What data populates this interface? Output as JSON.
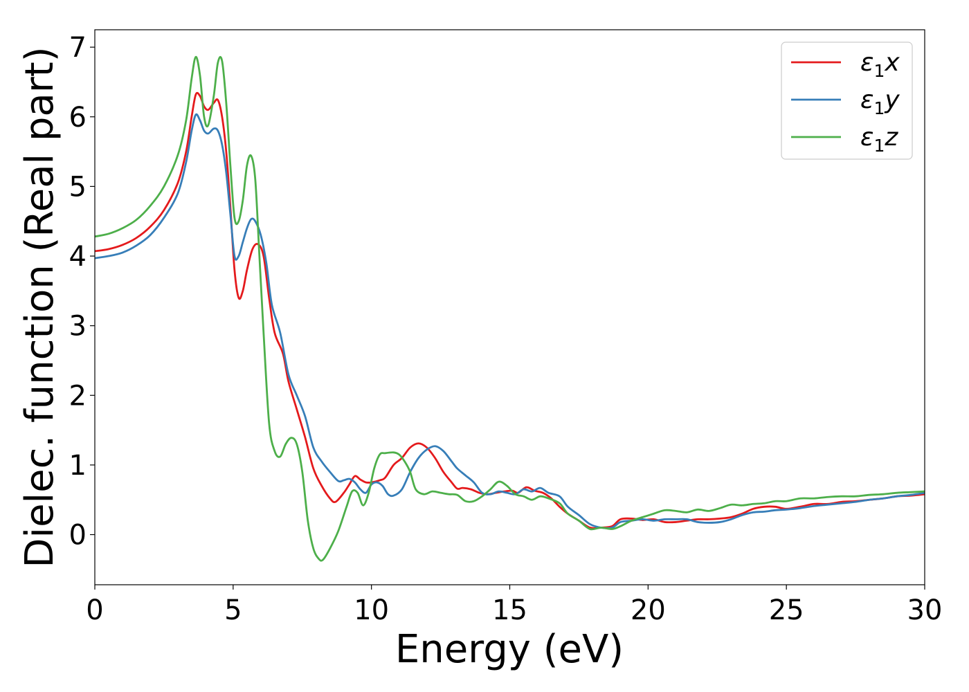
{
  "chart_data": {
    "type": "line",
    "xlabel": "Energy (eV)",
    "ylabel": "Dielec. function (Real part)",
    "xlim": [
      0,
      30
    ],
    "ylim": [
      -0.72,
      7.25
    ],
    "xticks": [
      0,
      5,
      10,
      15,
      20,
      25,
      30
    ],
    "yticks": [
      0,
      1,
      2,
      3,
      4,
      5,
      6,
      7
    ],
    "grid": false,
    "legend_position": "top-right",
    "series": [
      {
        "name": "ε₁x",
        "legend": {
          "base": "ε",
          "sub": "1",
          "axis": "x"
        },
        "color": "#e41a1c",
        "points": [
          [
            0,
            4.07
          ],
          [
            0.5,
            4.1
          ],
          [
            1,
            4.16
          ],
          [
            1.5,
            4.26
          ],
          [
            2,
            4.42
          ],
          [
            2.5,
            4.66
          ],
          [
            3,
            5.05
          ],
          [
            3.3,
            5.5
          ],
          [
            3.5,
            6.0
          ],
          [
            3.65,
            6.32
          ],
          [
            3.8,
            6.3
          ],
          [
            3.95,
            6.15
          ],
          [
            4.1,
            6.1
          ],
          [
            4.3,
            6.2
          ],
          [
            4.45,
            6.24
          ],
          [
            4.6,
            6.0
          ],
          [
            4.75,
            5.5
          ],
          [
            4.9,
            4.7
          ],
          [
            5.05,
            3.8
          ],
          [
            5.2,
            3.4
          ],
          [
            5.35,
            3.5
          ],
          [
            5.5,
            3.8
          ],
          [
            5.7,
            4.1
          ],
          [
            5.9,
            4.17
          ],
          [
            6.1,
            4.0
          ],
          [
            6.3,
            3.4
          ],
          [
            6.5,
            2.9
          ],
          [
            6.8,
            2.6
          ],
          [
            7.0,
            2.2
          ],
          [
            7.3,
            1.8
          ],
          [
            7.6,
            1.4
          ],
          [
            7.9,
            0.95
          ],
          [
            8.2,
            0.7
          ],
          [
            8.5,
            0.52
          ],
          [
            8.7,
            0.47
          ],
          [
            9.0,
            0.6
          ],
          [
            9.2,
            0.72
          ],
          [
            9.4,
            0.84
          ],
          [
            9.6,
            0.79
          ],
          [
            9.8,
            0.75
          ],
          [
            10.0,
            0.75
          ],
          [
            10.3,
            0.78
          ],
          [
            10.5,
            0.82
          ],
          [
            10.8,
            1.0
          ],
          [
            11.1,
            1.1
          ],
          [
            11.4,
            1.25
          ],
          [
            11.7,
            1.31
          ],
          [
            12.0,
            1.25
          ],
          [
            12.3,
            1.1
          ],
          [
            12.6,
            0.9
          ],
          [
            12.9,
            0.75
          ],
          [
            13.1,
            0.66
          ],
          [
            13.3,
            0.67
          ],
          [
            13.6,
            0.65
          ],
          [
            13.9,
            0.6
          ],
          [
            14.2,
            0.58
          ],
          [
            14.5,
            0.6
          ],
          [
            14.8,
            0.62
          ],
          [
            15.1,
            0.63
          ],
          [
            15.3,
            0.6
          ],
          [
            15.6,
            0.68
          ],
          [
            15.9,
            0.63
          ],
          [
            16.2,
            0.6
          ],
          [
            16.5,
            0.52
          ],
          [
            16.8,
            0.4
          ],
          [
            17.1,
            0.3
          ],
          [
            17.5,
            0.2
          ],
          [
            17.9,
            0.1
          ],
          [
            18.3,
            0.1
          ],
          [
            18.7,
            0.12
          ],
          [
            19.0,
            0.22
          ],
          [
            19.4,
            0.23
          ],
          [
            19.8,
            0.21
          ],
          [
            20.2,
            0.22
          ],
          [
            20.6,
            0.18
          ],
          [
            21.0,
            0.18
          ],
          [
            21.4,
            0.2
          ],
          [
            21.8,
            0.22
          ],
          [
            22.2,
            0.22
          ],
          [
            22.6,
            0.23
          ],
          [
            23.0,
            0.25
          ],
          [
            23.4,
            0.3
          ],
          [
            23.8,
            0.37
          ],
          [
            24.2,
            0.4
          ],
          [
            24.6,
            0.4
          ],
          [
            25.0,
            0.37
          ],
          [
            25.5,
            0.4
          ],
          [
            26.0,
            0.44
          ],
          [
            26.5,
            0.44
          ],
          [
            27.0,
            0.47
          ],
          [
            27.5,
            0.48
          ],
          [
            28.0,
            0.5
          ],
          [
            28.5,
            0.52
          ],
          [
            29.0,
            0.55
          ],
          [
            29.5,
            0.56
          ],
          [
            30,
            0.58
          ]
        ]
      },
      {
        "name": "ε₁y",
        "legend": {
          "base": "ε",
          "sub": "1",
          "axis": "y"
        },
        "color": "#377eb8",
        "points": [
          [
            0,
            3.97
          ],
          [
            0.5,
            4.0
          ],
          [
            1,
            4.05
          ],
          [
            1.5,
            4.15
          ],
          [
            2,
            4.3
          ],
          [
            2.5,
            4.55
          ],
          [
            3,
            4.9
          ],
          [
            3.3,
            5.35
          ],
          [
            3.5,
            5.8
          ],
          [
            3.65,
            6.03
          ],
          [
            3.8,
            5.95
          ],
          [
            3.95,
            5.8
          ],
          [
            4.1,
            5.76
          ],
          [
            4.3,
            5.83
          ],
          [
            4.45,
            5.8
          ],
          [
            4.6,
            5.6
          ],
          [
            4.75,
            5.2
          ],
          [
            4.9,
            4.6
          ],
          [
            5.05,
            4.0
          ],
          [
            5.2,
            4.0
          ],
          [
            5.35,
            4.2
          ],
          [
            5.5,
            4.4
          ],
          [
            5.65,
            4.53
          ],
          [
            5.8,
            4.5
          ],
          [
            6.0,
            4.3
          ],
          [
            6.2,
            3.9
          ],
          [
            6.4,
            3.3
          ],
          [
            6.7,
            2.9
          ],
          [
            7.0,
            2.3
          ],
          [
            7.3,
            2.0
          ],
          [
            7.6,
            1.7
          ],
          [
            7.9,
            1.25
          ],
          [
            8.2,
            1.05
          ],
          [
            8.5,
            0.9
          ],
          [
            8.8,
            0.77
          ],
          [
            9.0,
            0.78
          ],
          [
            9.2,
            0.8
          ],
          [
            9.4,
            0.75
          ],
          [
            9.6,
            0.65
          ],
          [
            9.8,
            0.6
          ],
          [
            10.0,
            0.72
          ],
          [
            10.2,
            0.75
          ],
          [
            10.4,
            0.7
          ],
          [
            10.6,
            0.58
          ],
          [
            10.8,
            0.56
          ],
          [
            11.1,
            0.65
          ],
          [
            11.4,
            0.9
          ],
          [
            11.7,
            1.1
          ],
          [
            12.0,
            1.22
          ],
          [
            12.3,
            1.27
          ],
          [
            12.6,
            1.2
          ],
          [
            12.9,
            1.05
          ],
          [
            13.1,
            0.95
          ],
          [
            13.4,
            0.85
          ],
          [
            13.7,
            0.75
          ],
          [
            14.0,
            0.6
          ],
          [
            14.3,
            0.58
          ],
          [
            14.6,
            0.62
          ],
          [
            14.9,
            0.6
          ],
          [
            15.2,
            0.58
          ],
          [
            15.5,
            0.65
          ],
          [
            15.8,
            0.62
          ],
          [
            16.1,
            0.67
          ],
          [
            16.4,
            0.6
          ],
          [
            16.8,
            0.55
          ],
          [
            17.1,
            0.4
          ],
          [
            17.5,
            0.28
          ],
          [
            17.9,
            0.15
          ],
          [
            18.3,
            0.1
          ],
          [
            18.7,
            0.1
          ],
          [
            19.0,
            0.18
          ],
          [
            19.4,
            0.2
          ],
          [
            19.8,
            0.22
          ],
          [
            20.2,
            0.2
          ],
          [
            20.6,
            0.22
          ],
          [
            21.0,
            0.22
          ],
          [
            21.4,
            0.22
          ],
          [
            21.8,
            0.18
          ],
          [
            22.2,
            0.17
          ],
          [
            22.6,
            0.18
          ],
          [
            23.0,
            0.22
          ],
          [
            23.4,
            0.28
          ],
          [
            23.8,
            0.32
          ],
          [
            24.2,
            0.33
          ],
          [
            24.6,
            0.35
          ],
          [
            25.0,
            0.36
          ],
          [
            25.5,
            0.38
          ],
          [
            26.0,
            0.41
          ],
          [
            26.5,
            0.43
          ],
          [
            27.0,
            0.45
          ],
          [
            27.5,
            0.47
          ],
          [
            28.0,
            0.5
          ],
          [
            28.5,
            0.52
          ],
          [
            29.0,
            0.55
          ],
          [
            29.5,
            0.57
          ],
          [
            30,
            0.6
          ]
        ]
      },
      {
        "name": "ε₁z",
        "legend": {
          "base": "ε",
          "sub": "1",
          "axis": "z"
        },
        "color": "#4daf4a",
        "points": [
          [
            0,
            4.28
          ],
          [
            0.5,
            4.32
          ],
          [
            1,
            4.4
          ],
          [
            1.5,
            4.52
          ],
          [
            2,
            4.72
          ],
          [
            2.5,
            5.0
          ],
          [
            3,
            5.45
          ],
          [
            3.3,
            5.95
          ],
          [
            3.5,
            6.55
          ],
          [
            3.65,
            6.86
          ],
          [
            3.8,
            6.6
          ],
          [
            3.95,
            6.0
          ],
          [
            4.1,
            5.88
          ],
          [
            4.3,
            6.3
          ],
          [
            4.45,
            6.78
          ],
          [
            4.6,
            6.8
          ],
          [
            4.75,
            6.2
          ],
          [
            4.9,
            5.3
          ],
          [
            5.05,
            4.55
          ],
          [
            5.2,
            4.5
          ],
          [
            5.35,
            4.8
          ],
          [
            5.5,
            5.3
          ],
          [
            5.65,
            5.44
          ],
          [
            5.8,
            5.1
          ],
          [
            5.95,
            4.0
          ],
          [
            6.1,
            2.9
          ],
          [
            6.3,
            1.6
          ],
          [
            6.5,
            1.2
          ],
          [
            6.7,
            1.12
          ],
          [
            6.9,
            1.3
          ],
          [
            7.1,
            1.39
          ],
          [
            7.3,
            1.3
          ],
          [
            7.5,
            0.9
          ],
          [
            7.7,
            0.2
          ],
          [
            7.9,
            -0.2
          ],
          [
            8.1,
            -0.35
          ],
          [
            8.25,
            -0.36
          ],
          [
            8.5,
            -0.2
          ],
          [
            8.8,
            0.05
          ],
          [
            9.1,
            0.4
          ],
          [
            9.3,
            0.62
          ],
          [
            9.5,
            0.6
          ],
          [
            9.7,
            0.42
          ],
          [
            9.9,
            0.6
          ],
          [
            10.1,
            0.95
          ],
          [
            10.3,
            1.15
          ],
          [
            10.5,
            1.17
          ],
          [
            10.8,
            1.18
          ],
          [
            11.0,
            1.15
          ],
          [
            11.2,
            1.05
          ],
          [
            11.4,
            0.9
          ],
          [
            11.6,
            0.65
          ],
          [
            11.9,
            0.58
          ],
          [
            12.2,
            0.62
          ],
          [
            12.5,
            0.6
          ],
          [
            12.8,
            0.58
          ],
          [
            13.1,
            0.57
          ],
          [
            13.4,
            0.48
          ],
          [
            13.7,
            0.48
          ],
          [
            14.0,
            0.55
          ],
          [
            14.3,
            0.65
          ],
          [
            14.6,
            0.76
          ],
          [
            14.9,
            0.7
          ],
          [
            15.2,
            0.58
          ],
          [
            15.5,
            0.55
          ],
          [
            15.8,
            0.5
          ],
          [
            16.1,
            0.55
          ],
          [
            16.4,
            0.52
          ],
          [
            16.8,
            0.45
          ],
          [
            17.1,
            0.3
          ],
          [
            17.5,
            0.2
          ],
          [
            17.9,
            0.08
          ],
          [
            18.3,
            0.1
          ],
          [
            18.7,
            0.08
          ],
          [
            19.0,
            0.12
          ],
          [
            19.4,
            0.2
          ],
          [
            19.8,
            0.25
          ],
          [
            20.2,
            0.3
          ],
          [
            20.6,
            0.35
          ],
          [
            21.0,
            0.34
          ],
          [
            21.4,
            0.32
          ],
          [
            21.8,
            0.36
          ],
          [
            22.2,
            0.34
          ],
          [
            22.6,
            0.38
          ],
          [
            23.0,
            0.43
          ],
          [
            23.4,
            0.42
          ],
          [
            23.8,
            0.44
          ],
          [
            24.2,
            0.45
          ],
          [
            24.6,
            0.48
          ],
          [
            25.0,
            0.48
          ],
          [
            25.5,
            0.52
          ],
          [
            26.0,
            0.52
          ],
          [
            26.5,
            0.54
          ],
          [
            27.0,
            0.55
          ],
          [
            27.5,
            0.55
          ],
          [
            28.0,
            0.57
          ],
          [
            28.5,
            0.58
          ],
          [
            29.0,
            0.6
          ],
          [
            29.5,
            0.61
          ],
          [
            30,
            0.62
          ]
        ]
      }
    ]
  }
}
